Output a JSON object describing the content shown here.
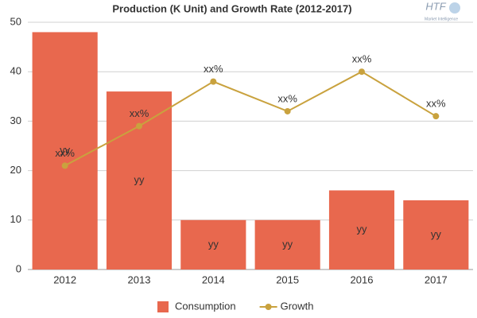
{
  "chart_data": {
    "type": "bar",
    "title": "Production (K Unit) and Growth Rate (2012-2017)",
    "logo": {
      "text": "HTF",
      "subtext": "Market Intelligence"
    },
    "categories": [
      "2012",
      "2013",
      "2014",
      "2015",
      "2016",
      "2017"
    ],
    "series": [
      {
        "name": "Consumption",
        "type": "bar",
        "color": "#e8684e",
        "values": [
          48,
          36,
          10,
          10,
          16,
          14
        ],
        "value_labels": [
          "yy",
          "yy",
          "yy",
          "yy",
          "yy",
          "yy"
        ]
      },
      {
        "name": "Growth",
        "type": "line",
        "color": "#c9a23e",
        "values": [
          21,
          29,
          38,
          32,
          40,
          31
        ],
        "value_labels": [
          "xx%",
          "xx%",
          "xx%",
          "xx%",
          "xx%",
          "xx%"
        ]
      }
    ],
    "ylim": [
      0,
      50
    ],
    "yticks": [
      0,
      10,
      20,
      30,
      40,
      50
    ],
    "grid": true,
    "legend": "bottom"
  }
}
